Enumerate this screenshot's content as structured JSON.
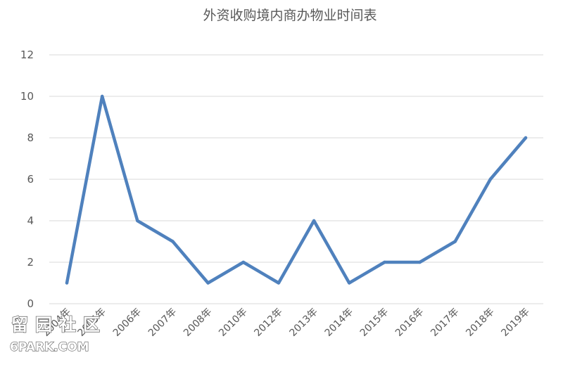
{
  "chart_data": {
    "type": "line",
    "title": "外资收购境内商办物业时间表",
    "xlabel": "",
    "ylabel": "",
    "categories": [
      "2004年",
      "2005年",
      "2006年",
      "2007年",
      "2008年",
      "2010年",
      "2012年",
      "2013年",
      "2014年",
      "2015年",
      "2016年",
      "2017年",
      "2018年",
      "2019年"
    ],
    "series": [
      {
        "values": [
          1,
          10,
          4,
          3,
          1,
          2,
          1,
          4,
          1,
          2,
          2,
          3,
          6,
          8
        ]
      }
    ],
    "ylim": [
      0,
      12
    ],
    "yticks": [
      0,
      2,
      4,
      6,
      8,
      10,
      12
    ],
    "grid": true,
    "legend": "none",
    "color": "#4f81bd"
  },
  "watermark": {
    "line1": "留园社区",
    "line2": "6PARK.COM"
  }
}
